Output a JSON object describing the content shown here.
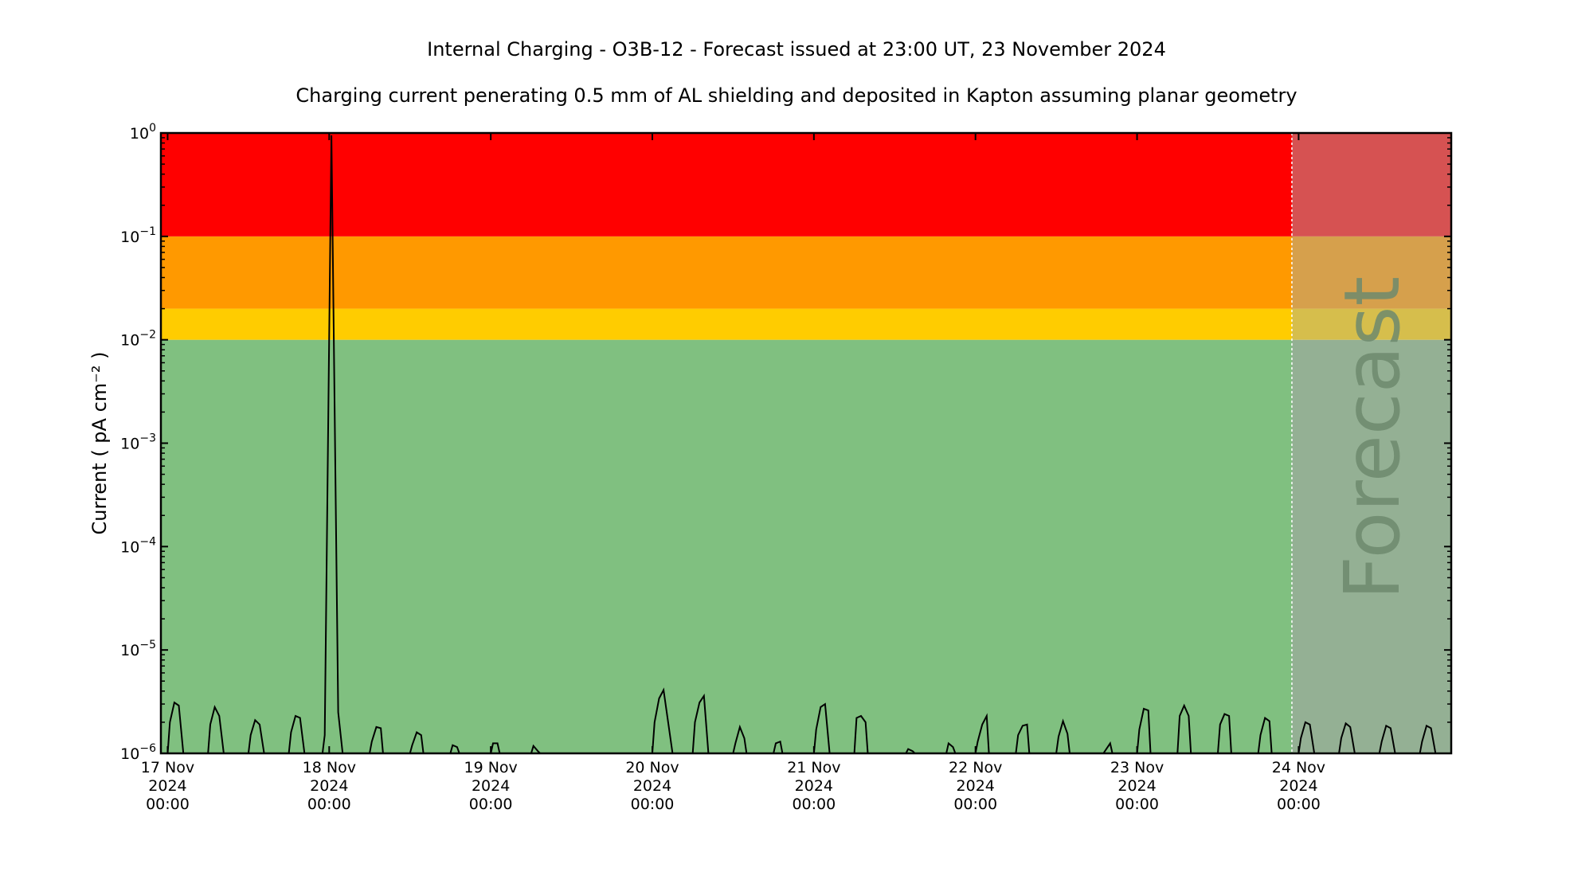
{
  "chart_data": {
    "type": "line",
    "title": "Internal Charging - O3B-12 - Forecast issued at 23:00 UT, 23 November 2024",
    "subtitle": "Charging current penerating 0.5 mm of AL shielding and deposited in Kapton assuming planar geometry",
    "ylabel": "Current ( pA cm⁻² )",
    "yscale": "log",
    "ylim": [
      1e-06,
      1
    ],
    "xlim": [
      "2024-11-16 23:00",
      "2024-11-24 22:40"
    ],
    "forecast_start": "2024-11-23 23:00",
    "forecast_label": "Forecast",
    "y_ticks": [
      {
        "base": "10",
        "exp": "−6",
        "value": 1e-06
      },
      {
        "base": "10",
        "exp": "−5",
        "value": 1e-05
      },
      {
        "base": "10",
        "exp": "−4",
        "value": 0.0001
      },
      {
        "base": "10",
        "exp": "−3",
        "value": 0.001
      },
      {
        "base": "10",
        "exp": "−2",
        "value": 0.01
      },
      {
        "base": "10",
        "exp": "−1",
        "value": 0.1
      },
      {
        "base": "10",
        "exp": "0",
        "value": 1
      }
    ],
    "x_ticks": [
      {
        "date": "2024-11-17 00:00",
        "line1": "17 Nov",
        "line2": "2024",
        "line3": "00:00"
      },
      {
        "date": "2024-11-18 00:00",
        "line1": "18 Nov",
        "line2": "2024",
        "line3": "00:00"
      },
      {
        "date": "2024-11-19 00:00",
        "line1": "19 Nov",
        "line2": "2024",
        "line3": "00:00"
      },
      {
        "date": "2024-11-20 00:00",
        "line1": "20 Nov",
        "line2": "2024",
        "line3": "00:00"
      },
      {
        "date": "2024-11-21 00:00",
        "line1": "21 Nov",
        "line2": "2024",
        "line3": "00:00"
      },
      {
        "date": "2024-11-22 00:00",
        "line1": "22 Nov",
        "line2": "2024",
        "line3": "00:00"
      },
      {
        "date": "2024-11-23 00:00",
        "line1": "23 Nov",
        "line2": "2024",
        "line3": "00:00"
      },
      {
        "date": "2024-11-24 00:00",
        "line1": "24 Nov",
        "line2": "2024",
        "line3": "00:00"
      }
    ],
    "bands": [
      {
        "from": 1e-06,
        "to": 0.01,
        "color": "#80c080"
      },
      {
        "from": 0.01,
        "to": 0.02,
        "color": "#ffcc00"
      },
      {
        "from": 0.02,
        "to": 0.1,
        "color": "#ff9900"
      },
      {
        "from": 0.1,
        "to": 1,
        "color": "#ff0000"
      }
    ],
    "forecast_bands": [
      {
        "from": 1e-06,
        "to": 0.01,
        "color": "#94b094"
      },
      {
        "from": 0.01,
        "to": 0.02,
        "color": "#d6be4c"
      },
      {
        "from": 0.02,
        "to": 0.1,
        "color": "#d6a04c"
      },
      {
        "from": 0.1,
        "to": 1,
        "color": "#d65252"
      }
    ],
    "line_color": "#000000",
    "series": [
      {
        "points": [
          [
            "2024-11-17 00:00",
            1e-06
          ],
          [
            "2024-11-17 00:20",
            2e-06
          ],
          [
            "2024-11-17 01:00",
            3.1e-06
          ],
          [
            "2024-11-17 01:40",
            2.9e-06
          ],
          [
            "2024-11-17 02:20",
            1e-06
          ],
          [
            "2024-11-17 06:00",
            1e-06
          ],
          [
            "2024-11-17 06:20",
            1.9e-06
          ],
          [
            "2024-11-17 07:00",
            2.8e-06
          ],
          [
            "2024-11-17 07:40",
            2.3e-06
          ],
          [
            "2024-11-17 08:20",
            1e-06
          ],
          [
            "2024-11-17 12:00",
            1e-06
          ],
          [
            "2024-11-17 12:20",
            1.5e-06
          ],
          [
            "2024-11-17 13:00",
            2.1e-06
          ],
          [
            "2024-11-17 13:40",
            1.9e-06
          ],
          [
            "2024-11-17 14:20",
            1e-06
          ],
          [
            "2024-11-17 18:00",
            1e-06
          ],
          [
            "2024-11-17 18:20",
            1.6e-06
          ],
          [
            "2024-11-17 19:00",
            2.3e-06
          ],
          [
            "2024-11-17 19:40",
            2.2e-06
          ],
          [
            "2024-11-17 20:20",
            1e-06
          ],
          [
            "2024-11-17 23:00",
            1e-06
          ],
          [
            "2024-11-17 23:20",
            1.5e-06
          ],
          [
            "2024-11-18 00:20",
            0.95
          ],
          [
            "2024-11-18 01:20",
            2.5e-06
          ],
          [
            "2024-11-18 02:00",
            1e-06
          ],
          [
            "2024-11-18 06:00",
            1e-06
          ],
          [
            "2024-11-18 06:20",
            1.3e-06
          ],
          [
            "2024-11-18 07:00",
            1.8e-06
          ],
          [
            "2024-11-18 07:40",
            1.75e-06
          ],
          [
            "2024-11-18 08:00",
            1e-06
          ],
          [
            "2024-11-18 12:00",
            1e-06
          ],
          [
            "2024-11-18 12:20",
            1.2e-06
          ],
          [
            "2024-11-18 13:00",
            1.6e-06
          ],
          [
            "2024-11-18 13:40",
            1.5e-06
          ],
          [
            "2024-11-18 14:00",
            1e-06
          ],
          [
            "2024-11-18 18:00",
            1e-06
          ],
          [
            "2024-11-18 18:20",
            1.2e-06
          ],
          [
            "2024-11-18 19:00",
            1.15e-06
          ],
          [
            "2024-11-18 19:20",
            1e-06
          ],
          [
            "2024-11-19 00:00",
            1e-06
          ],
          [
            "2024-11-19 00:20",
            1.25e-06
          ],
          [
            "2024-11-19 01:00",
            1.25e-06
          ],
          [
            "2024-11-19 01:20",
            1e-06
          ],
          [
            "2024-11-19 06:00",
            1e-06
          ],
          [
            "2024-11-19 06:20",
            1.18e-06
          ],
          [
            "2024-11-19 07:00",
            1.05e-06
          ],
          [
            "2024-11-19 07:20",
            1e-06
          ],
          [
            "2024-11-20 00:00",
            1e-06
          ],
          [
            "2024-11-20 00:20",
            2e-06
          ],
          [
            "2024-11-20 01:00",
            3.4e-06
          ],
          [
            "2024-11-20 01:40",
            4.1e-06
          ],
          [
            "2024-11-20 03:00",
            1e-06
          ],
          [
            "2024-11-20 06:00",
            1e-06
          ],
          [
            "2024-11-20 06:20",
            2e-06
          ],
          [
            "2024-11-20 07:00",
            3.1e-06
          ],
          [
            "2024-11-20 07:40",
            3.6e-06
          ],
          [
            "2024-11-20 08:20",
            1e-06
          ],
          [
            "2024-11-20 12:00",
            1e-06
          ],
          [
            "2024-11-20 12:20",
            1.25e-06
          ],
          [
            "2024-11-20 13:00",
            1.8e-06
          ],
          [
            "2024-11-20 13:40",
            1.4e-06
          ],
          [
            "2024-11-20 14:00",
            1e-06
          ],
          [
            "2024-11-20 18:00",
            1e-06
          ],
          [
            "2024-11-20 18:20",
            1.25e-06
          ],
          [
            "2024-11-20 19:00",
            1.3e-06
          ],
          [
            "2024-11-20 19:20",
            1e-06
          ],
          [
            "2024-11-21 00:00",
            1e-06
          ],
          [
            "2024-11-21 00:20",
            1.7e-06
          ],
          [
            "2024-11-21 01:00",
            2.8e-06
          ],
          [
            "2024-11-21 01:40",
            3e-06
          ],
          [
            "2024-11-21 02:20",
            1e-06
          ],
          [
            "2024-11-21 06:00",
            1e-06
          ],
          [
            "2024-11-21 06:20",
            2.2e-06
          ],
          [
            "2024-11-21 07:00",
            2.3e-06
          ],
          [
            "2024-11-21 07:40",
            2e-06
          ],
          [
            "2024-11-21 08:00",
            1e-06
          ],
          [
            "2024-11-21 13:40",
            1e-06
          ],
          [
            "2024-11-21 14:00",
            1.1e-06
          ],
          [
            "2024-11-21 14:40",
            1.05e-06
          ],
          [
            "2024-11-21 15:00",
            1e-06
          ],
          [
            "2024-11-21 19:40",
            1e-06
          ],
          [
            "2024-11-21 20:00",
            1.25e-06
          ],
          [
            "2024-11-21 20:40",
            1.15e-06
          ],
          [
            "2024-11-21 21:00",
            1e-06
          ],
          [
            "2024-11-22 00:00",
            1e-06
          ],
          [
            "2024-11-22 00:20",
            1.3e-06
          ],
          [
            "2024-11-22 01:00",
            1.9e-06
          ],
          [
            "2024-11-22 01:40",
            2.3e-06
          ],
          [
            "2024-11-22 02:00",
            1e-06
          ],
          [
            "2024-11-22 06:00",
            1e-06
          ],
          [
            "2024-11-22 06:20",
            1.5e-06
          ],
          [
            "2024-11-22 07:00",
            1.85e-06
          ],
          [
            "2024-11-22 07:40",
            1.9e-06
          ],
          [
            "2024-11-22 08:00",
            1e-06
          ],
          [
            "2024-11-22 12:00",
            1e-06
          ],
          [
            "2024-11-22 12:20",
            1.45e-06
          ],
          [
            "2024-11-22 13:00",
            2.05e-06
          ],
          [
            "2024-11-22 13:40",
            1.55e-06
          ],
          [
            "2024-11-22 14:00",
            1e-06
          ],
          [
            "2024-11-22 19:00",
            1e-06
          ],
          [
            "2024-11-22 20:00",
            1.25e-06
          ],
          [
            "2024-11-22 20:20",
            1e-06
          ],
          [
            "2024-11-23 00:00",
            1e-06
          ],
          [
            "2024-11-23 00:20",
            1.7e-06
          ],
          [
            "2024-11-23 01:00",
            2.7e-06
          ],
          [
            "2024-11-23 01:40",
            2.6e-06
          ],
          [
            "2024-11-23 02:00",
            1e-06
          ],
          [
            "2024-11-23 06:00",
            1e-06
          ],
          [
            "2024-11-23 06:20",
            2.3e-06
          ],
          [
            "2024-11-23 07:00",
            2.9e-06
          ],
          [
            "2024-11-23 07:40",
            2.3e-06
          ],
          [
            "2024-11-23 08:00",
            1e-06
          ],
          [
            "2024-11-23 12:00",
            1e-06
          ],
          [
            "2024-11-23 12:20",
            1.9e-06
          ],
          [
            "2024-11-23 13:00",
            2.4e-06
          ],
          [
            "2024-11-23 13:40",
            2.3e-06
          ],
          [
            "2024-11-23 14:00",
            1e-06
          ],
          [
            "2024-11-23 18:00",
            1e-06
          ],
          [
            "2024-11-23 18:20",
            1.5e-06
          ],
          [
            "2024-11-23 19:00",
            2.2e-06
          ],
          [
            "2024-11-23 19:40",
            2.05e-06
          ],
          [
            "2024-11-23 20:00",
            1e-06
          ],
          [
            "2024-11-24 00:00",
            1e-06
          ],
          [
            "2024-11-24 00:20",
            1.4e-06
          ],
          [
            "2024-11-24 01:00",
            2e-06
          ],
          [
            "2024-11-24 01:40",
            1.9e-06
          ],
          [
            "2024-11-24 02:20",
            1e-06
          ],
          [
            "2024-11-24 06:00",
            1e-06
          ],
          [
            "2024-11-24 06:20",
            1.4e-06
          ],
          [
            "2024-11-24 07:00",
            1.95e-06
          ],
          [
            "2024-11-24 07:40",
            1.8e-06
          ],
          [
            "2024-11-24 08:20",
            1e-06
          ],
          [
            "2024-11-24 12:00",
            1e-06
          ],
          [
            "2024-11-24 12:20",
            1.3e-06
          ],
          [
            "2024-11-24 13:00",
            1.85e-06
          ],
          [
            "2024-11-24 13:40",
            1.75e-06
          ],
          [
            "2024-11-24 14:20",
            1e-06
          ],
          [
            "2024-11-24 18:00",
            1e-06
          ],
          [
            "2024-11-24 18:20",
            1.3e-06
          ],
          [
            "2024-11-24 19:00",
            1.85e-06
          ],
          [
            "2024-11-24 19:40",
            1.75e-06
          ],
          [
            "2024-11-24 20:20",
            1e-06
          ]
        ]
      }
    ]
  }
}
